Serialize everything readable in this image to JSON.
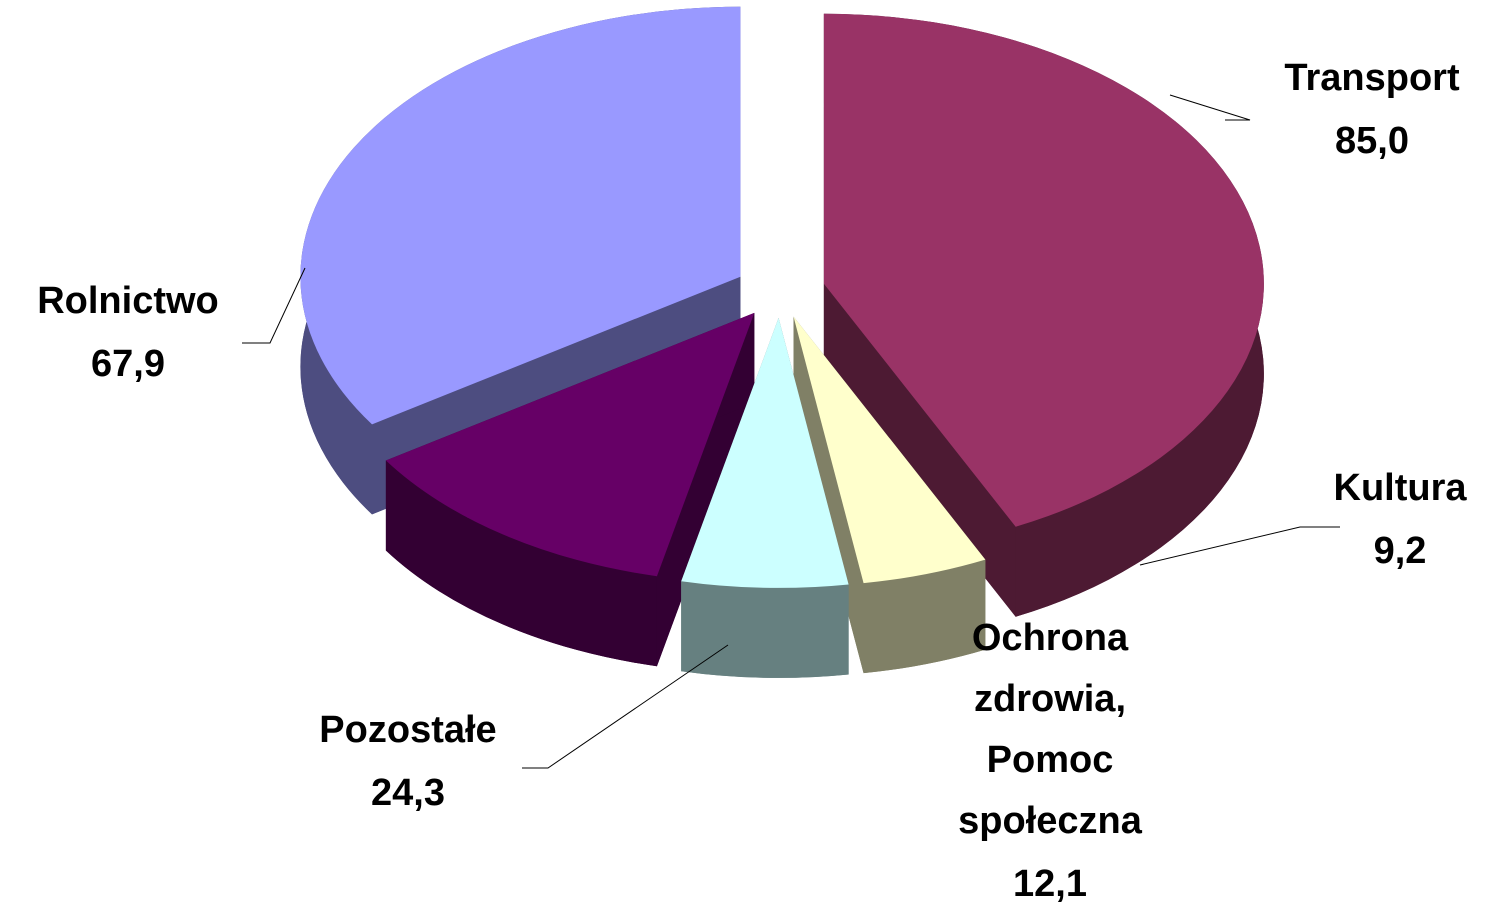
{
  "chart_data": {
    "type": "pie",
    "categories": [
      "Transport",
      "Kultura",
      "Ochrona zdrowia, Pomoc społeczna",
      "Pozostałe",
      "Rolnictwo"
    ],
    "values": [
      85.0,
      9.2,
      12.1,
      24.3,
      67.9
    ],
    "value_labels": [
      "85,0",
      "9,2",
      "12,1",
      "24,3",
      "67,9"
    ],
    "colors": [
      "#993366",
      "#ffffcc",
      "#ccffff",
      "#660066",
      "#9999ff"
    ]
  }
}
